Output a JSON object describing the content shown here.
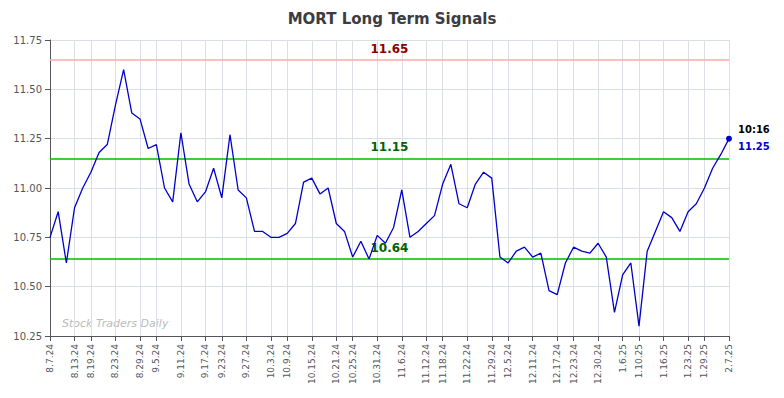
{
  "chart_data": {
    "type": "line",
    "title": "MORT Long Term Signals",
    "categories": [
      "8.7.24",
      null,
      null,
      "8.13.24",
      null,
      "8.19.24",
      null,
      null,
      "8.23.24",
      null,
      null,
      "8.29.24",
      null,
      "9.5.24",
      null,
      null,
      "9.11.24",
      null,
      null,
      "9.17.24",
      null,
      "9.23.24",
      null,
      null,
      "9.27.24",
      null,
      null,
      "10.3.24",
      null,
      "10.9.24",
      null,
      null,
      "10.15.24",
      null,
      null,
      "10.21.24",
      null,
      "10.25.24",
      null,
      null,
      "10.31.24",
      null,
      null,
      "11.6.24",
      null,
      null,
      "11.12.24",
      null,
      "11.18.24",
      null,
      null,
      "11.22.24",
      null,
      null,
      "11.29.24",
      null,
      "12.5.24",
      null,
      null,
      "12.11.24",
      null,
      null,
      "12.17.24",
      null,
      "12.23.24",
      null,
      null,
      "12.30.24",
      null,
      null,
      "1.6.25",
      null,
      "1.10.25",
      null,
      null,
      "1.16.25",
      null,
      null,
      "1.23.25",
      null,
      "1.29.25",
      null,
      null,
      "2.7.25"
    ],
    "values": [
      10.75,
      10.88,
      10.62,
      10.9,
      11.0,
      11.08,
      11.18,
      11.22,
      11.42,
      11.6,
      11.38,
      11.35,
      11.2,
      11.22,
      11.0,
      10.93,
      11.28,
      11.02,
      10.93,
      10.98,
      11.1,
      10.95,
      11.27,
      10.99,
      10.95,
      10.78,
      10.78,
      10.75,
      10.75,
      10.77,
      10.82,
      11.03,
      11.05,
      10.97,
      11.0,
      10.82,
      10.78,
      10.65,
      10.73,
      10.64,
      10.76,
      10.72,
      10.8,
      10.99,
      10.75,
      10.78,
      10.82,
      10.86,
      11.02,
      11.12,
      10.92,
      10.9,
      11.02,
      11.08,
      11.05,
      10.65,
      10.62,
      10.68,
      10.7,
      10.65,
      10.67,
      10.48,
      10.46,
      10.62,
      10.7,
      10.68,
      10.67,
      10.72,
      10.65,
      10.37,
      10.56,
      10.62,
      10.3,
      10.68,
      10.78,
      10.88,
      10.85,
      10.78,
      10.88,
      10.92,
      11.0,
      11.1,
      11.17,
      11.25
    ],
    "color": "#0000cc",
    "marker": "circle",
    "ylim": [
      10.25,
      11.75
    ],
    "yticks": [
      10.25,
      {
        "value": 10.5,
        "label": "10.50"
      },
      10.75,
      {
        "value": 11.0,
        "label": "11.00"
      },
      11.25,
      {
        "value": 11.5,
        "label": "11.50"
      },
      11.75
    ],
    "grid": true,
    "hlines": [
      {
        "value": 11.65,
        "label": "11.65",
        "color": "#ffaaaa",
        "text_color": "darkred"
      },
      {
        "value": 11.15,
        "label": "11.15",
        "color": "#00bb00",
        "text_color": "darkgreen"
      },
      {
        "value": 10.64,
        "label": "10.64",
        "color": "#00bb00",
        "text_color": "darkgreen"
      }
    ],
    "annotations": [
      {
        "text": "10:16",
        "color": "black"
      },
      {
        "text": "11.25",
        "color": "#0000cc"
      }
    ],
    "watermark": "Stock Traders Daily",
    "watermark_color": "#bbbbbb"
  }
}
